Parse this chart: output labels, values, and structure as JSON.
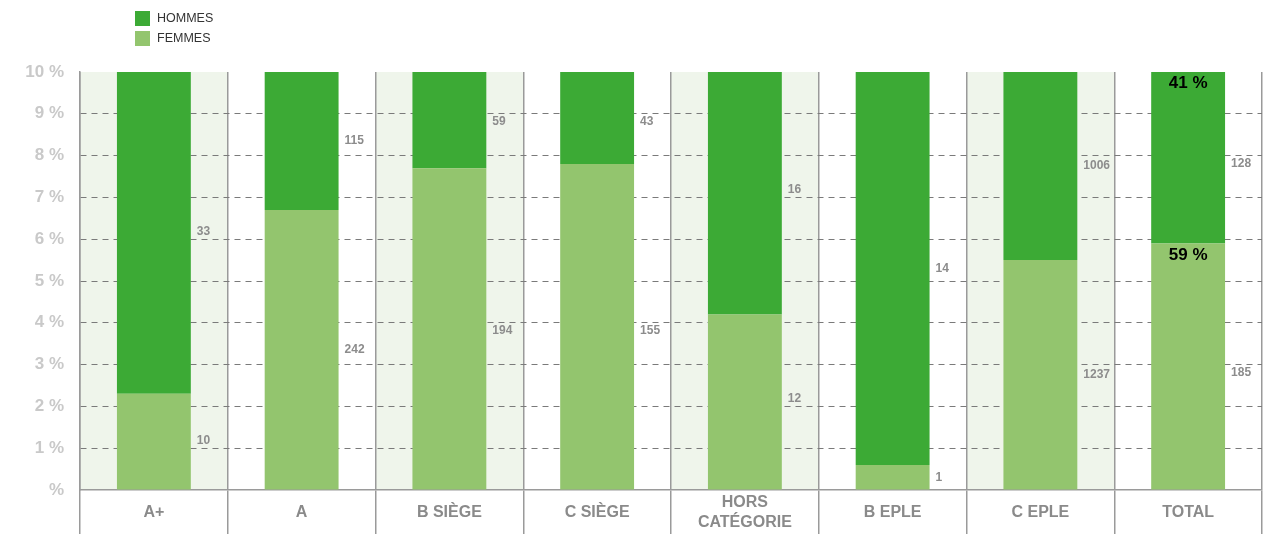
{
  "chart_data": {
    "type": "bar",
    "stacked": true,
    "categories": [
      "A+",
      "A",
      "B SIÈGE",
      "C SIÈGE",
      "HORS CATÉGORIE",
      "B EPLE",
      "C EPLE",
      "TOTAL"
    ],
    "series": [
      {
        "name": "FEMMES",
        "color": "#93c56e",
        "values": [
          2.3,
          6.7,
          7.7,
          7.8,
          4.2,
          0.6,
          5.5,
          5.9
        ]
      },
      {
        "name": "HOMMES",
        "color": "#3caa35",
        "values": [
          7.7,
          3.3,
          2.3,
          2.2,
          5.8,
          9.4,
          4.5,
          4.1
        ]
      }
    ],
    "ylim": [
      0,
      10
    ],
    "yticks": [
      {
        "value": 0,
        "label": "%"
      },
      {
        "value": 1,
        "label": "1 %"
      },
      {
        "value": 2,
        "label": "2 %"
      },
      {
        "value": 3,
        "label": "3 %"
      },
      {
        "value": 4,
        "label": "4 %"
      },
      {
        "value": 5,
        "label": "5 %"
      },
      {
        "value": 6,
        "label": "6 %"
      },
      {
        "value": 7,
        "label": "7 %"
      },
      {
        "value": 8,
        "label": "8 %"
      },
      {
        "value": 9,
        "label": "9 %"
      },
      {
        "value": 10,
        "label": "10 %"
      }
    ],
    "grid": true,
    "legend": "top left",
    "bands": [
      {
        "axis": "x",
        "from": "A+",
        "to": "A+",
        "color": "#eff5eb"
      },
      {
        "axis": "x",
        "from": "B SIÈGE",
        "to": "B SIÈGE",
        "color": "#eff5eb"
      },
      {
        "axis": "x",
        "from": "HORS CATÉGORIE",
        "to": "HORS CATÉGORIE",
        "color": "#eff5eb"
      },
      {
        "axis": "x",
        "from": "C EPLE",
        "to": "C EPLE",
        "color": "#eff5eb"
      }
    ],
    "annotations": [
      "10",
      "33",
      "242",
      "115",
      "194",
      "59",
      "155",
      "43",
      "12",
      "16",
      "1",
      "14",
      "1237",
      "1006",
      "185",
      "128",
      {
        "text": "59 %",
        "x": "TOTAL",
        "y": 5.9
      },
      {
        "text": "41 %",
        "x": "TOTAL",
        "y": 10
      }
    ]
  }
}
